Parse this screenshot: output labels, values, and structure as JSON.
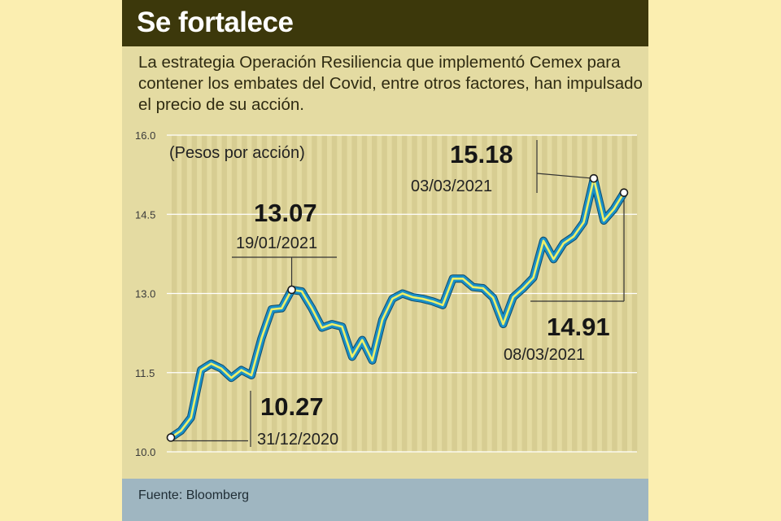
{
  "title": "Se fortalece",
  "subtitle": "La estrategia Operación Resiliencia que implementó Cemex para contener los embates del Covid, entre otros factores, han impulsado el precio de su acción.",
  "source": "Fuente: Bloomberg",
  "colors": {
    "background": "#fbeeb0",
    "panel": "#e4dba2",
    "stripe": "#d7cd92",
    "header": "#3c380b",
    "footer": "#9fb6c1",
    "line_outer": "#1a90c8",
    "line_inner": "#ecef6a"
  },
  "chart_data": {
    "type": "line",
    "title": "Se fortalece",
    "unit_label": "(Pesos por acción)",
    "ylabel": "",
    "xlabel": "",
    "ylim": [
      10.0,
      16.0
    ],
    "yticks": [
      "10.0",
      "11.5",
      "13.0",
      "14.5",
      "16.0"
    ],
    "ytick_values": [
      10.0,
      11.5,
      13.0,
      14.5,
      16.0
    ],
    "grid": true,
    "series": [
      {
        "name": "Cemex",
        "x_start": "31/12/2020",
        "x_end": "08/03/2021",
        "values": [
          10.27,
          10.4,
          10.65,
          11.55,
          11.67,
          11.58,
          11.4,
          11.55,
          11.45,
          12.15,
          12.7,
          12.72,
          13.07,
          13.04,
          12.72,
          12.35,
          12.42,
          12.37,
          11.8,
          12.12,
          11.73,
          12.5,
          12.9,
          13.0,
          12.93,
          12.9,
          12.85,
          12.78,
          13.28,
          13.28,
          13.12,
          13.1,
          12.92,
          12.42,
          12.93,
          13.1,
          13.3,
          14.0,
          13.65,
          13.95,
          14.08,
          14.35,
          15.18,
          14.38,
          14.6,
          14.91
        ]
      }
    ],
    "annotations": [
      {
        "label": "10.27",
        "date": "31/12/2020",
        "index": 0
      },
      {
        "label": "13.07",
        "date": "19/01/2021",
        "index": 12
      },
      {
        "label": "15.18",
        "date": "03/03/2021",
        "index": 42
      },
      {
        "label": "14.91",
        "date": "08/03/2021",
        "index": 45
      }
    ]
  }
}
